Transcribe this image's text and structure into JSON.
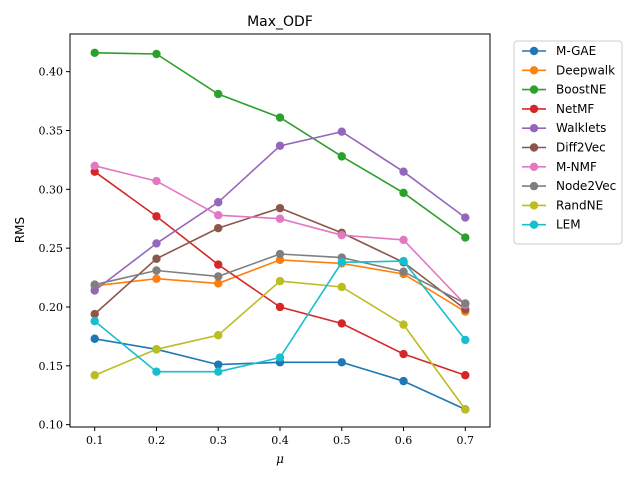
{
  "chart_data": {
    "type": "line",
    "title": "Max_ODF",
    "xlabel": "μ",
    "ylabel": "RMS",
    "x": [
      0.1,
      0.2,
      0.3,
      0.4,
      0.5,
      0.6,
      0.7
    ],
    "x_tick_labels": [
      "0.1",
      "0.2",
      "0.3",
      "0.4",
      "0.5",
      "0.6",
      "0.7"
    ],
    "xlim": [
      0.06,
      0.74
    ],
    "y_ticks": [
      0.1,
      0.15,
      0.2,
      0.25,
      0.3,
      0.35,
      0.4
    ],
    "y_tick_labels": [
      "0.10",
      "0.15",
      "0.20",
      "0.25",
      "0.30",
      "0.35",
      "0.40"
    ],
    "ylim": [
      0.098,
      0.432
    ],
    "grid": false,
    "legend_position": "outside-right",
    "series": [
      {
        "name": "M-GAE",
        "color": "#1f77b4",
        "values": [
          0.173,
          0.164,
          0.151,
          0.153,
          0.153,
          0.137,
          0.113
        ]
      },
      {
        "name": "Deepwalk",
        "color": "#ff7f0e",
        "values": [
          0.218,
          0.224,
          0.22,
          0.24,
          0.237,
          0.228,
          0.196
        ]
      },
      {
        "name": "BoostNE",
        "color": "#2ca02c",
        "values": [
          0.416,
          0.415,
          0.381,
          0.361,
          0.328,
          0.297,
          0.259
        ]
      },
      {
        "name": "NetMF",
        "color": "#d62728",
        "values": [
          0.315,
          0.277,
          0.236,
          0.2,
          0.186,
          0.16,
          0.142
        ]
      },
      {
        "name": "Walklets",
        "color": "#9467bd",
        "values": [
          0.214,
          0.254,
          0.289,
          0.337,
          0.349,
          0.315,
          0.276
        ]
      },
      {
        "name": "Diff2Vec",
        "color": "#8c564b",
        "values": [
          0.194,
          0.241,
          0.267,
          0.284,
          0.263,
          0.238,
          0.198
        ]
      },
      {
        "name": "M-NMF",
        "color": "#e377c2",
        "values": [
          0.32,
          0.307,
          0.278,
          0.275,
          0.261,
          0.257,
          0.202
        ]
      },
      {
        "name": "Node2Vec",
        "color": "#7f7f7f",
        "values": [
          0.219,
          0.231,
          0.226,
          0.245,
          0.242,
          0.23,
          0.203
        ]
      },
      {
        "name": "RandNE",
        "color": "#bcbd22",
        "values": [
          0.142,
          0.164,
          0.176,
          0.222,
          0.217,
          0.185,
          0.113
        ]
      },
      {
        "name": "LEM",
        "color": "#17becf",
        "values": [
          0.188,
          0.145,
          0.145,
          0.157,
          0.238,
          0.239,
          0.172
        ]
      }
    ]
  }
}
